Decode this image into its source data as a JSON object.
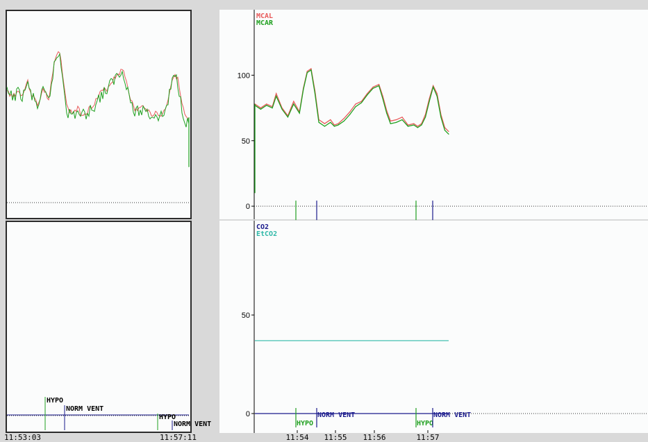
{
  "colors": {
    "mcal": "#e85a5a",
    "mcar": "#1fa01f",
    "co2": "#1a1a8c",
    "etco2": "#2fb8a8",
    "hypo": "#1fa01f",
    "norm_vent": "#1a1a8c",
    "baseline": "#333333"
  },
  "overview": {
    "start_time": "11:53:03",
    "end_time": "11:57:11",
    "events": [
      {
        "label": "HYPO",
        "t": 0.21
      },
      {
        "label": "NORM VENT",
        "t": 0.315
      },
      {
        "label": "HYPO",
        "t": 0.83
      },
      {
        "label": "NORM VENT",
        "t": 0.91
      }
    ]
  },
  "chart_data": [
    {
      "type": "line",
      "series": [
        {
          "name": "MCAL",
          "color": "#e85a5a",
          "x": [
            0,
            0.03,
            0.06,
            0.09,
            0.11,
            0.14,
            0.17,
            0.2,
            0.23,
            0.25,
            0.27,
            0.29,
            0.31,
            0.33,
            0.36,
            0.39,
            0.41,
            0.43,
            0.46,
            0.49,
            0.52,
            0.55,
            0.58,
            0.61,
            0.64,
            0.66,
            0.68,
            0.7,
            0.73,
            0.76,
            0.79,
            0.82,
            0.84,
            0.86,
            0.88,
            0.9,
            0.92,
            0.94,
            0.96,
            0.98,
            1.0
          ],
          "values": [
            78,
            75,
            78,
            76,
            86,
            75,
            69,
            80,
            72,
            90,
            103,
            105,
            88,
            66,
            63,
            66,
            62,
            63,
            67,
            72,
            78,
            80,
            86,
            91,
            93,
            84,
            73,
            65,
            66,
            68,
            62,
            63,
            61,
            63,
            70,
            82,
            92,
            86,
            70,
            60,
            57
          ]
        },
        {
          "name": "MCAR",
          "color": "#1fa01f",
          "x": [
            0,
            0.03,
            0.06,
            0.09,
            0.11,
            0.14,
            0.17,
            0.2,
            0.23,
            0.25,
            0.27,
            0.29,
            0.31,
            0.33,
            0.36,
            0.39,
            0.41,
            0.43,
            0.46,
            0.49,
            0.52,
            0.55,
            0.58,
            0.61,
            0.64,
            0.66,
            0.68,
            0.7,
            0.73,
            0.76,
            0.79,
            0.82,
            0.84,
            0.86,
            0.88,
            0.9,
            0.92,
            0.94,
            0.96,
            0.98,
            1.0
          ],
          "values": [
            77,
            74,
            77,
            75,
            84,
            74,
            68,
            78,
            71,
            89,
            102,
            104,
            86,
            64,
            61,
            64,
            61,
            62,
            65,
            70,
            76,
            79,
            85,
            90,
            92,
            82,
            71,
            63,
            64,
            66,
            61,
            62,
            60,
            62,
            68,
            80,
            91,
            84,
            68,
            58,
            55
          ]
        }
      ],
      "ylim": [
        -10,
        150
      ],
      "yticks": [
        0,
        50,
        100
      ],
      "events": [
        {
          "label": "HYPO",
          "time": "11:53:59"
        },
        {
          "label": "NORM VENT",
          "time": "11:54:25"
        },
        {
          "label": "HYPO",
          "time": "11:56:34"
        },
        {
          "label": "NORM VENT",
          "time": "11:56:56"
        }
      ]
    },
    {
      "type": "line",
      "series": [
        {
          "name": "CO2",
          "color": "#1a1a8c",
          "x": [
            0,
            1
          ],
          "values": [
            0,
            0
          ]
        },
        {
          "name": "EtCO2",
          "color": "#2fb8a8",
          "x": [
            0,
            1
          ],
          "values": [
            37,
            37
          ]
        }
      ],
      "ylim": [
        -5,
        80
      ],
      "yticks": [
        0,
        50
      ],
      "xtick_labels": [
        "11:54",
        "11:55",
        "11:56",
        "11:57"
      ],
      "events": [
        {
          "label": "HYPO",
          "time": "11:53:59"
        },
        {
          "label": "NORM VENT",
          "time": "11:54:25"
        },
        {
          "label": "HYPO",
          "time": "11:56:34"
        },
        {
          "label": "NORM VENT",
          "time": "11:56:56"
        }
      ]
    }
  ]
}
